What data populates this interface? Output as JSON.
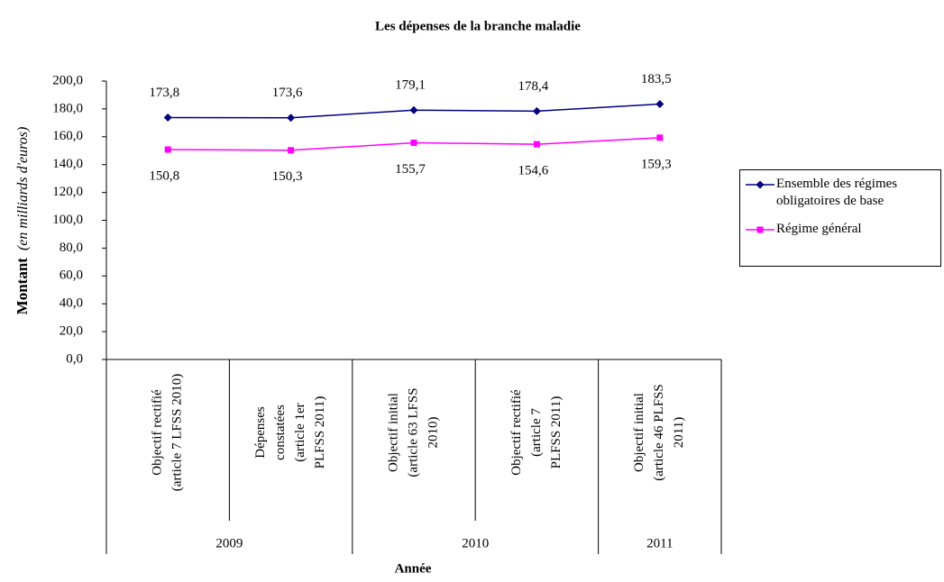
{
  "chart_data": {
    "type": "line",
    "title": "Les dépenses de la branche maladie",
    "ylabel": "Montant",
    "ylabel_note": "(en milliards d'euros)",
    "xlabel": "Année",
    "categories": [
      [
        "Objectif rectifié",
        "(article 7 LFSS 2010)"
      ],
      [
        "Dépenses",
        "constatées",
        "(article 1er",
        "PLFSS 2011)"
      ],
      [
        "Objectif initial",
        "(article 63 LFSS",
        "2010)"
      ],
      [
        "Objectif rectifié",
        "(article 7",
        "PLFSS 2011)"
      ],
      [
        "Objectif initial",
        "(article 46 PLFSS",
        "2011)"
      ]
    ],
    "x_groups": [
      "2009",
      "2009",
      "2010",
      "2010",
      "2011"
    ],
    "series": [
      {
        "name": "Ensemble des régimes obligatoires de base",
        "color": "#000080",
        "marker": "diamond",
        "values": [
          173.8,
          173.6,
          179.1,
          178.4,
          183.5
        ],
        "value_labels": [
          "173,8",
          "173,6",
          "179,1",
          "178,4",
          "183,5"
        ]
      },
      {
        "name": "Régime général",
        "color": "#ff00ff",
        "marker": "square",
        "values": [
          150.8,
          150.3,
          155.7,
          154.6,
          159.3
        ],
        "value_labels": [
          "150,8",
          "150,3",
          "155,7",
          "154,6",
          "159,3"
        ]
      }
    ],
    "ylim": [
      0,
      200
    ],
    "yticks": [
      {
        "value": 0,
        "label": "0,0"
      },
      {
        "value": 20,
        "label": "20,0"
      },
      {
        "value": 40,
        "label": "40,0"
      },
      {
        "value": 60,
        "label": "60,0"
      },
      {
        "value": 80,
        "label": "80,0"
      },
      {
        "value": 100,
        "label": "100,0"
      },
      {
        "value": 120,
        "label": "120,0"
      },
      {
        "value": 140,
        "label": "140,0"
      },
      {
        "value": 160,
        "label": "160,0"
      },
      {
        "value": 180,
        "label": "180,0"
      },
      {
        "value": 200,
        "label": "200,0"
      }
    ],
    "grid": false,
    "legend": "right"
  }
}
